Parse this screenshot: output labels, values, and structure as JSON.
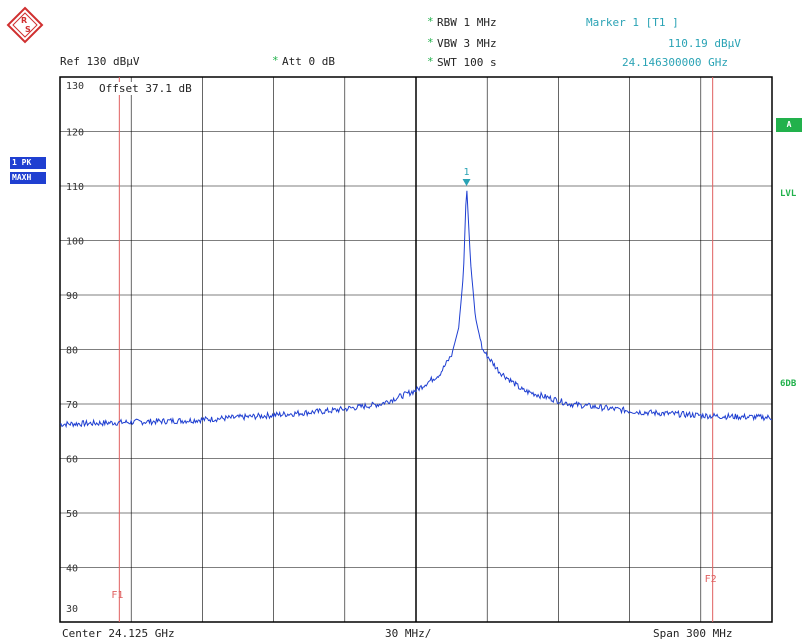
{
  "header": {
    "ref": "Ref  130 dBµV",
    "att": "Att  0 dB",
    "rbw": "RBW 1 MHz",
    "vbw": "VBW 3 MHz",
    "swt": "SWT 100 s",
    "star": "*",
    "marker_title": "Marker 1 [T1 ]",
    "marker_level": "110.19 dBµV",
    "marker_freq": "24.146300000 GHz",
    "offset": "Offset  37.1 dB"
  },
  "side": {
    "trace_badge_1": "1 PK",
    "trace_badge_2": "MAXH",
    "a_badge": "A",
    "lvl": "LVL",
    "sixdb": "6DB"
  },
  "footer": {
    "center": "Center 24.125 GHz",
    "div": "30 MHz/",
    "span": "Span  300 MHz"
  },
  "colors": {
    "trace": "#1f3fd1",
    "marker": "#2aa3b5",
    "limit_lines": "#e06060",
    "grid": "#000000",
    "accent": "#22b14c"
  },
  "chart_data": {
    "type": "line",
    "xlim": [
      23.975,
      24.275
    ],
    "ylim": [
      30,
      130
    ],
    "x_unit": "GHz",
    "y_unit": "dBµV",
    "ytick_labels": [
      "130",
      "120",
      "110",
      "100",
      "90",
      "80",
      "70",
      "60",
      "50",
      "40",
      "30"
    ],
    "grid": true,
    "series": [
      {
        "x": [
          23.975,
          24.0,
          24.03,
          24.06,
          24.09,
          24.11,
          24.125,
          24.135,
          24.14,
          24.143,
          24.145,
          24.1463,
          24.148,
          24.15,
          24.153,
          24.16,
          24.17,
          24.19,
          24.22,
          24.25,
          24.275
        ],
        "values": [
          66.3,
          66.6,
          67.0,
          67.8,
          68.8,
          70.0,
          72.5,
          75.5,
          79.0,
          84.0,
          94.0,
          110.19,
          96.0,
          86.0,
          80.0,
          76.0,
          72.5,
          70.0,
          68.5,
          67.8,
          67.5
        ]
      }
    ],
    "markers": [
      {
        "label": "1",
        "x": 24.1463,
        "y": 110.19
      }
    ],
    "vertical_lines": [
      {
        "label": "F1",
        "x": 24.0
      },
      {
        "label": "F2",
        "x": 24.25
      }
    ]
  }
}
